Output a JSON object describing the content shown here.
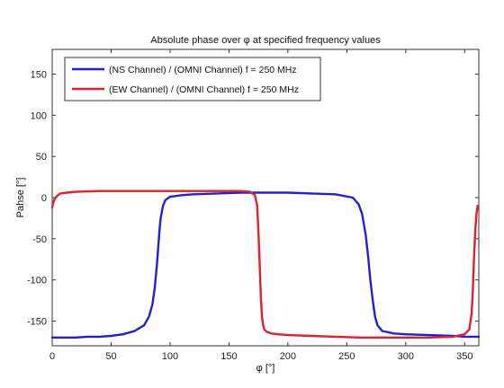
{
  "chart_data": {
    "type": "line",
    "title": "Absolute phase over φ at specified frequency values",
    "xlabel": "φ [°]",
    "ylabel": "Pahse [°]",
    "xlim": [
      0,
      362
    ],
    "ylim": [
      -180,
      180
    ],
    "x_ticks": [
      0,
      50,
      100,
      150,
      200,
      250,
      300,
      350
    ],
    "y_ticks": [
      -150,
      -100,
      -50,
      0,
      50,
      100,
      150
    ],
    "x_tick_labels": [
      "0",
      "50",
      "100",
      "150",
      "200",
      "250",
      "300",
      "350"
    ],
    "y_tick_labels": [
      "-150",
      "-100",
      "-50",
      "0",
      "50",
      "100",
      "150"
    ],
    "grid": false,
    "legend_position": "top-left",
    "series": [
      {
        "name": "(NS Channel) / (OMNI Channel) f = 250 MHz",
        "color": "#2020d8",
        "x": [
          0,
          10,
          20,
          30,
          40,
          50,
          60,
          70,
          78,
          82,
          85,
          87,
          89,
          90,
          91,
          92,
          94,
          96,
          100,
          110,
          120,
          140,
          160,
          180,
          200,
          220,
          240,
          255,
          260,
          263,
          266,
          268,
          270,
          272,
          274,
          276,
          280,
          290,
          300,
          320,
          340,
          350,
          362
        ],
        "values": [
          -170,
          -170,
          -170,
          -169,
          -169,
          -168,
          -166,
          -162,
          -155,
          -145,
          -130,
          -110,
          -80,
          -60,
          -40,
          -25,
          -10,
          -3,
          1,
          3,
          4,
          5,
          6,
          6,
          6,
          5,
          4,
          0,
          -8,
          -20,
          -45,
          -70,
          -100,
          -125,
          -145,
          -155,
          -162,
          -165,
          -166,
          -167,
          -168,
          -169,
          -169
        ]
      },
      {
        "name": "(EW Channel) / (OMNI Channel) f = 250 MHz",
        "color": "#e0202a",
        "x": [
          0,
          1,
          2,
          4,
          7,
          12,
          20,
          40,
          60,
          80,
          100,
          120,
          140,
          160,
          168,
          172,
          174,
          175,
          176,
          177,
          178,
          179,
          180,
          182,
          186,
          192,
          200,
          220,
          240,
          260,
          280,
          300,
          320,
          340,
          350,
          354,
          356,
          357,
          358,
          359,
          360,
          361
        ],
        "values": [
          -12,
          -6,
          -2,
          2,
          5,
          6,
          7,
          8,
          8,
          8,
          8,
          8,
          8,
          8,
          7,
          3,
          -10,
          -40,
          -80,
          -120,
          -145,
          -155,
          -160,
          -163,
          -165,
          -166,
          -167,
          -168,
          -169,
          -170,
          -170,
          -170,
          -170,
          -169,
          -166,
          -160,
          -140,
          -110,
          -70,
          -40,
          -20,
          -10
        ]
      }
    ]
  }
}
